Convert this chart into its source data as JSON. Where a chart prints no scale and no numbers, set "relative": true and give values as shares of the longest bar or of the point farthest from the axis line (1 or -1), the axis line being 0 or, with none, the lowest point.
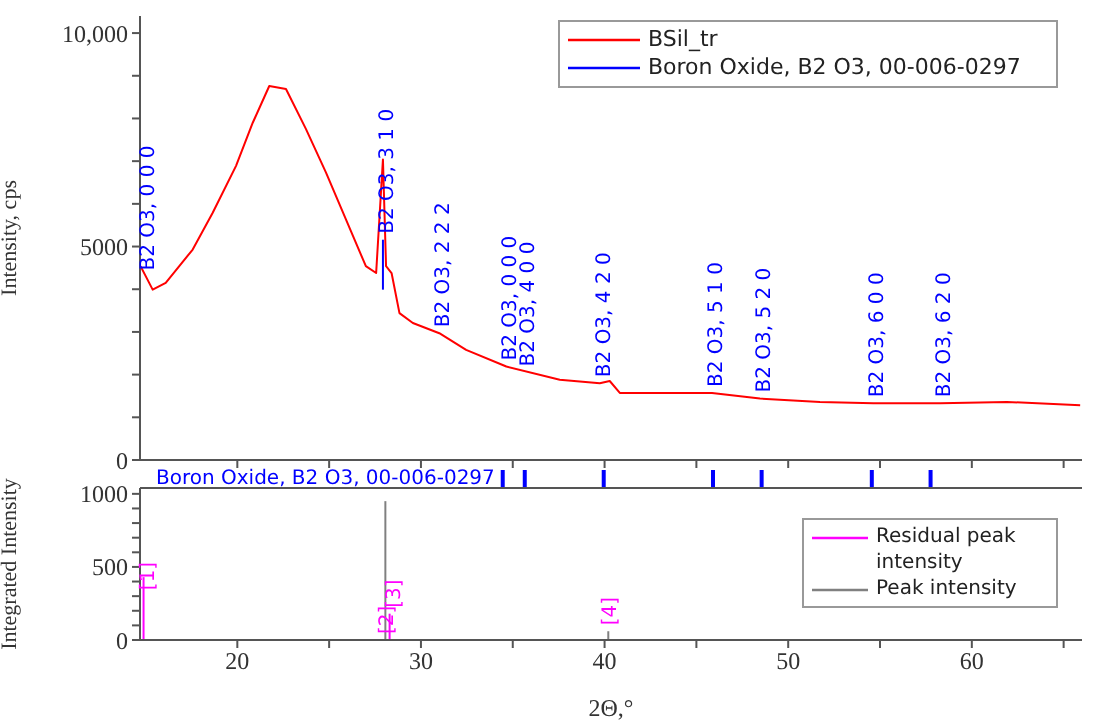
{
  "chart_data": [
    {
      "type": "line",
      "ylabel": "Intensity, cps",
      "xlim": [
        14.7,
        66
      ],
      "xticks": [
        {
          "value": 20,
          "label": null
        },
        {
          "value": 25,
          "label": null
        },
        {
          "value": 30,
          "label": null
        },
        {
          "value": 35,
          "label": null
        },
        {
          "value": 40,
          "label": null
        },
        {
          "value": 45,
          "label": null
        },
        {
          "value": 50,
          "label": null
        },
        {
          "value": 55,
          "label": null
        },
        {
          "value": 60,
          "label": null
        },
        {
          "value": 65,
          "label": null
        }
      ],
      "ylim": [
        0,
        10400
      ],
      "yticks": [
        0,
        {
          "value": 1000,
          "label": null
        },
        {
          "value": 2000,
          "label": null
        },
        {
          "value": 3000,
          "label": null
        },
        {
          "value": 4000,
          "label": null
        },
        5000,
        {
          "value": 6000,
          "label": null
        },
        {
          "value": 7000,
          "label": null
        },
        {
          "value": 8000,
          "label": null
        },
        {
          "value": 9000,
          "label": null
        },
        {
          "value": 10000,
          "label": "10,000"
        }
      ],
      "tick_labels": "y",
      "legend": "top right",
      "grid": false,
      "series": [
        {
          "name": "BSil_tr",
          "color": "#ff0000",
          "x": [
            14.73,
            15.39,
            16.1,
            17.57,
            18.66,
            19.93,
            20.84,
            21.74,
            22.65,
            23.74,
            24.83,
            25.92,
            27.0,
            27.56,
            27.93,
            28.1,
            28.4,
            28.83,
            29.56,
            31.0,
            32.46,
            34.65,
            37.56,
            39.74,
            40.28,
            40.83,
            45.85,
            48.46,
            51.73,
            54.64,
            58.28,
            61.9,
            65.9
          ],
          "values": [
            4540,
            3990,
            4150,
            4930,
            5790,
            6890,
            7900,
            8760,
            8690,
            7750,
            6730,
            5630,
            4540,
            4380,
            7040,
            4540,
            4380,
            3440,
            3210,
            2970,
            2580,
            2190,
            1880,
            1800,
            1850,
            1570,
            1570,
            1440,
            1360,
            1330,
            1330,
            1360,
            1280
          ]
        },
        {
          "name": "Boron Oxide, B2 O3, 00-006-0297",
          "color": "#0000ff",
          "x": [
            27.93,
            27.93
          ],
          "values": [
            3990,
            5160
          ]
        }
      ],
      "annotations": [
        {
          "text": "B2 O3, 0 0 0",
          "x": 14.9,
          "y": 4300
        },
        {
          "text": "B2 O3, 3 1 0",
          "x": 27.93,
          "y": 5160
        },
        {
          "text": "B2 O3, 2 2 2",
          "x": 31.0,
          "y": 2970
        },
        {
          "text": "B2 O3, 0 0 0",
          "x": 34.65,
          "y": 2190
        },
        {
          "text": "B2 O3, 4 0 0",
          "x": 35.6,
          "y": 2050
        },
        {
          "text": "B2 O3, 4 2 0",
          "x": 39.74,
          "y": 1800
        },
        {
          "text": "B2 O3, 5 1 0",
          "x": 45.85,
          "y": 1570
        },
        {
          "text": "B2 O3, 5 2 0",
          "x": 48.46,
          "y": 1440
        },
        {
          "text": "B2 O3, 6 0 0",
          "x": 54.64,
          "y": 1330
        },
        {
          "text": "B2 O3, 6 2 0",
          "x": 58.28,
          "y": 1330
        }
      ]
    },
    {
      "type": "bar",
      "relative": true,
      "tick_labels": false,
      "xlim": [
        14.7,
        66
      ],
      "color": "#0000ff",
      "x": [
        34.4,
        35.6,
        39.9,
        45.85,
        48.5,
        54.5,
        57.7
      ],
      "values": [
        1,
        1,
        1,
        1,
        1,
        1,
        1
      ],
      "annotations": [
        "Boron Oxide, B2 O3, 00-006-0297"
      ]
    },
    {
      "type": "bar",
      "xlabel": "2Θ,°",
      "ylabel": "Integrated Intensity",
      "xlim": [
        14.7,
        66
      ],
      "xticks": [
        20,
        {
          "value": 25,
          "label": null
        },
        30,
        {
          "value": 35,
          "label": null
        },
        40,
        {
          "value": 45,
          "label": null
        },
        50,
        {
          "value": 55,
          "label": null
        },
        60,
        {
          "value": 65,
          "label": null
        }
      ],
      "ylim": [
        0,
        1040
      ],
      "yticks": [
        0,
        {
          "value": 100,
          "label": null
        },
        {
          "value": 200,
          "label": null
        },
        {
          "value": 300,
          "label": null
        },
        {
          "value": 400,
          "label": null
        },
        500,
        {
          "value": 600,
          "label": null
        },
        {
          "value": 700,
          "label": null
        },
        {
          "value": 800,
          "label": null
        },
        {
          "value": 900,
          "label": null
        },
        1000
      ],
      "legend": "right",
      "grid": false,
      "series": [
        {
          "name": "Residual peak intensity",
          "color": "#ff00ff",
          "x": [
            14.9,
            28.3
          ],
          "values": [
            430,
            180
          ]
        },
        {
          "name": "Peak intensity",
          "color": "#808080",
          "x": [
            27.96,
            40.1
          ],
          "values": [
            950,
            60
          ]
        }
      ],
      "annotations": [
        {
          "text": "[1]",
          "x": 14.9,
          "y": 300
        },
        {
          "text": "[2]",
          "x": 27.96,
          "y": 0
        },
        {
          "text": "[3]",
          "x": 28.3,
          "y": 180
        },
        {
          "text": "[4]",
          "x": 40.1,
          "y": 60
        }
      ]
    }
  ]
}
